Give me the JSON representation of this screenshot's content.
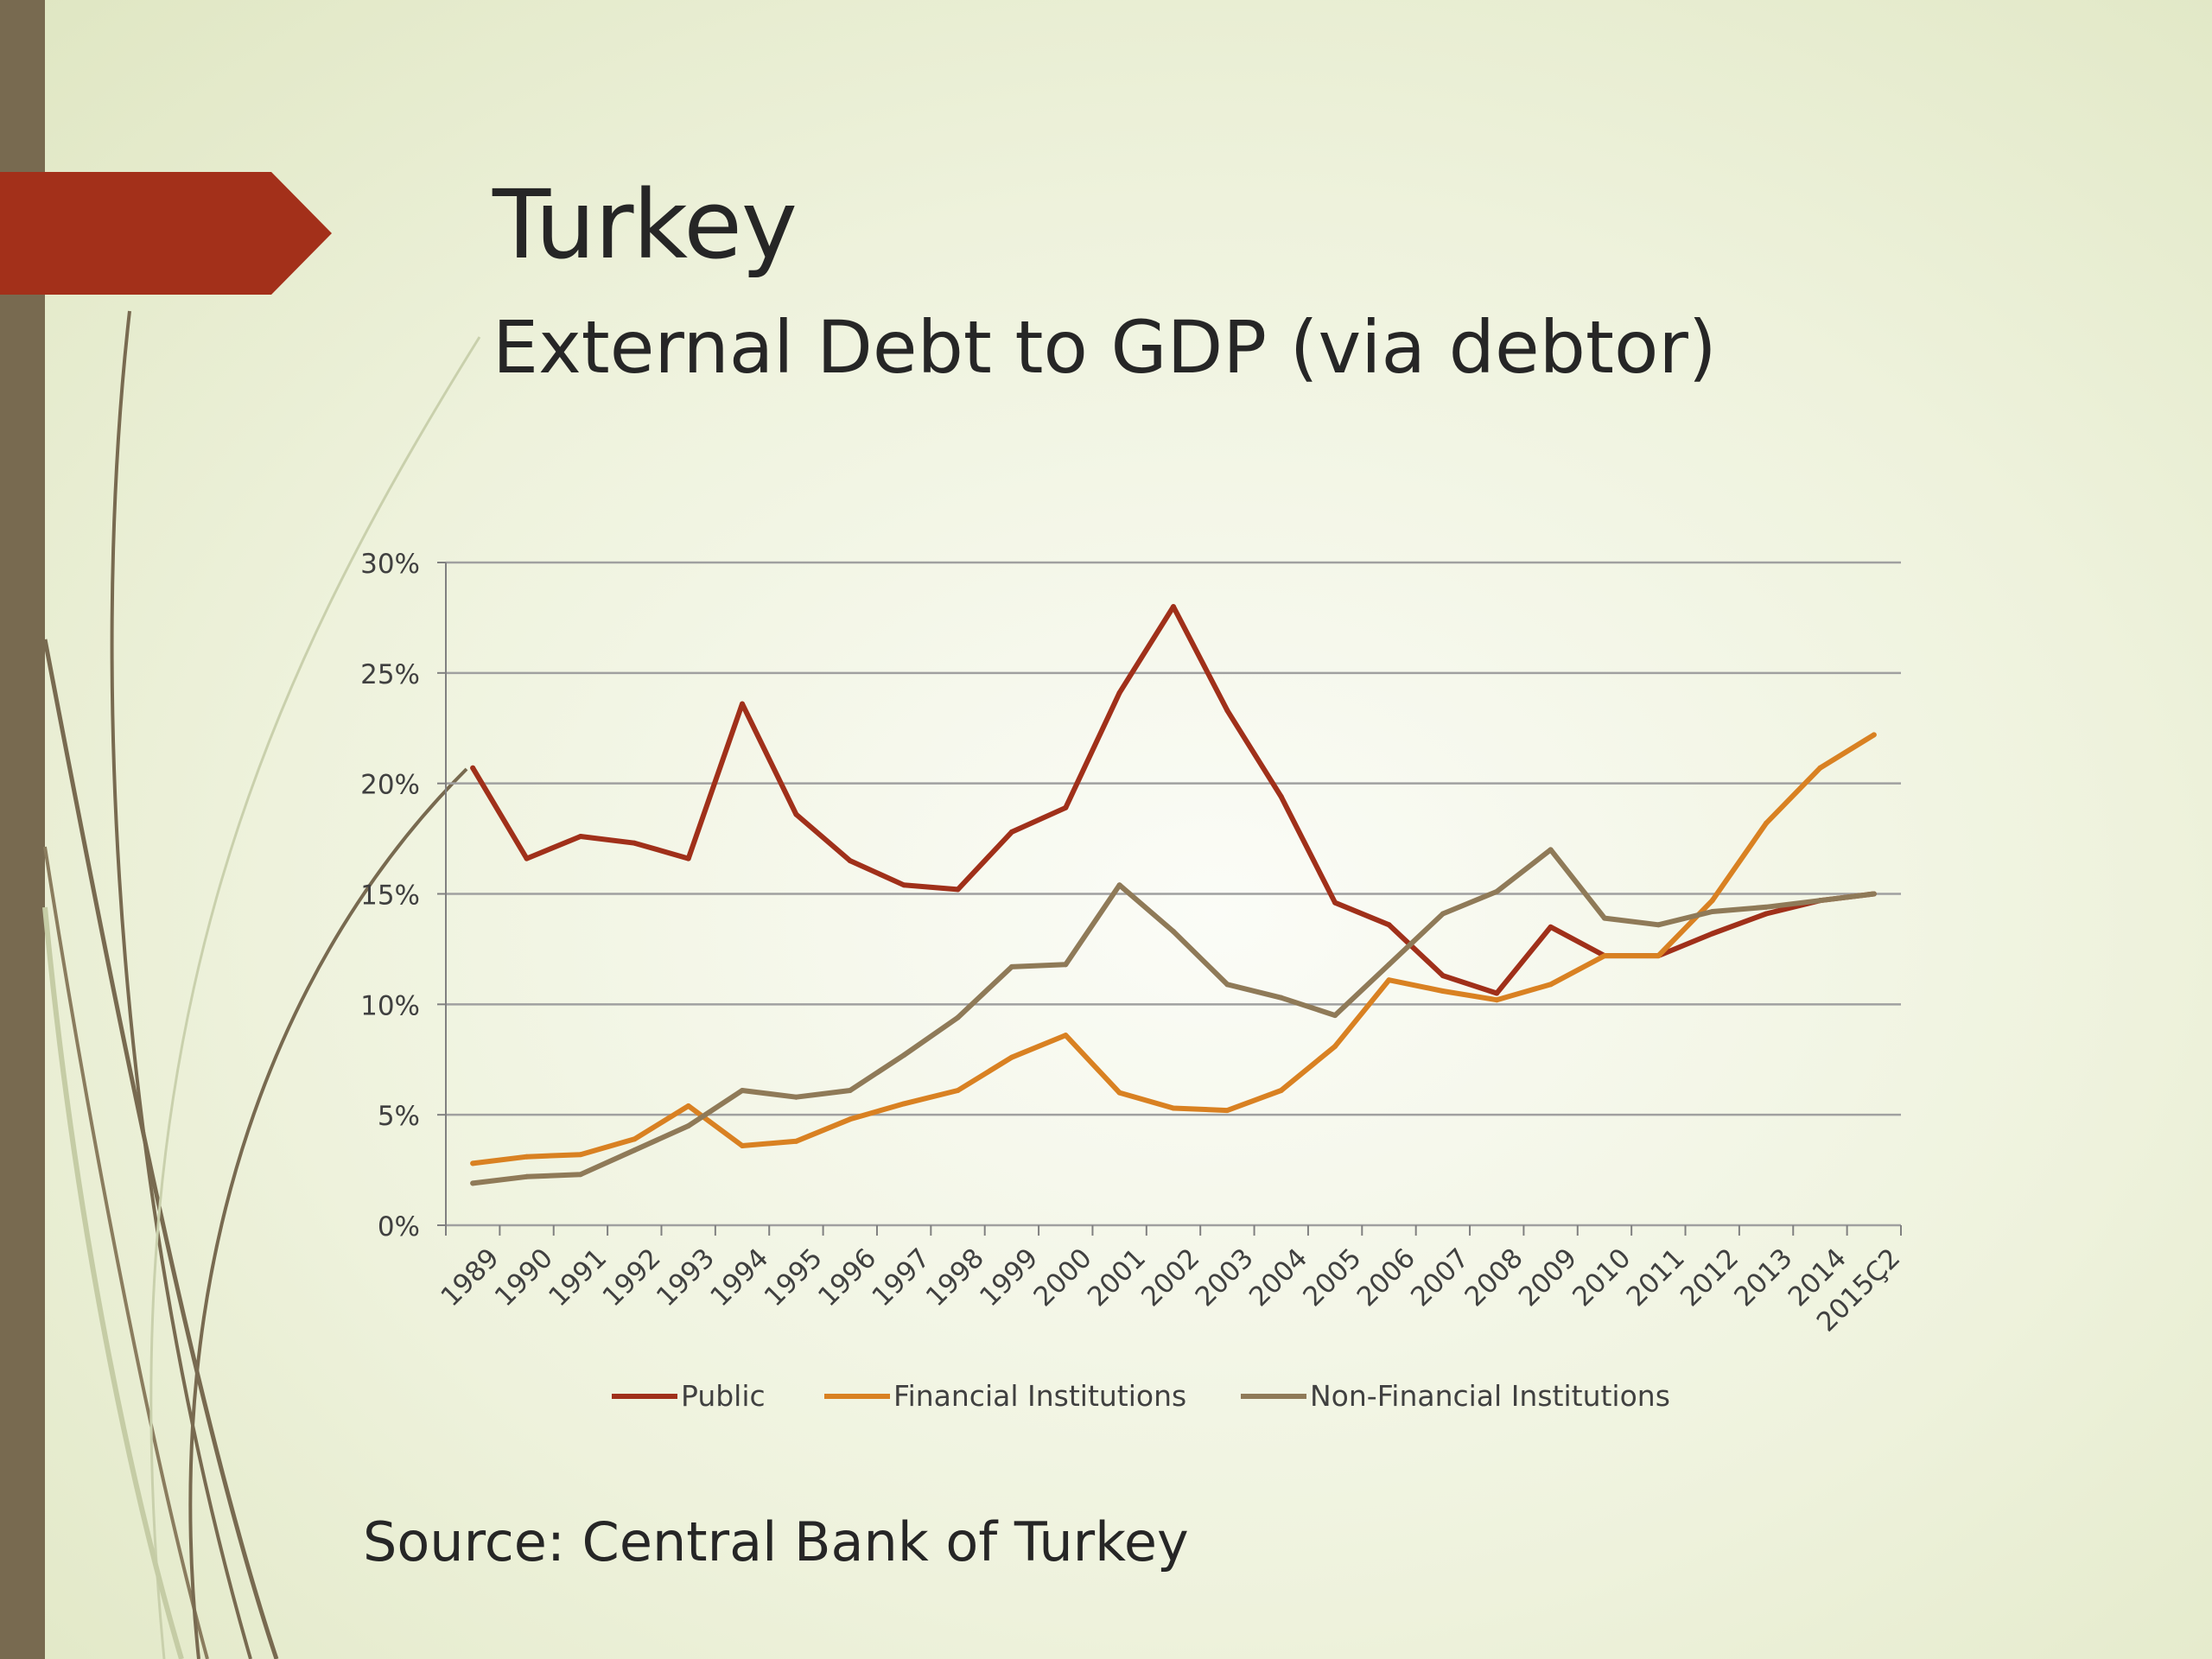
{
  "slide": {
    "title": "Turkey",
    "subtitle": "External Debt to GDP (via debtor)",
    "source": "Source: Central Bank of Turkey"
  },
  "colors": {
    "public": "#a0301a",
    "financial": "#d98122",
    "non_financial": "#8f7a58",
    "accent_arrow": "#a3301a",
    "left_bar": "#786a50",
    "grid": "#a0a0a0"
  },
  "chart_data": {
    "type": "line",
    "title": "",
    "xlabel": "",
    "ylabel": "",
    "ylim": [
      0,
      30
    ],
    "yticks": [
      "0%",
      "5%",
      "10%",
      "15%",
      "20%",
      "25%",
      "30%"
    ],
    "grid": true,
    "legend_position": "bottom",
    "categories": [
      "1989",
      "1990",
      "1991",
      "1992",
      "1993",
      "1994",
      "1995",
      "1996",
      "1997",
      "1998",
      "1999",
      "2000",
      "2001",
      "2002",
      "2003",
      "2004",
      "2005",
      "2006",
      "2007",
      "2008",
      "2009",
      "2010",
      "2011",
      "2012",
      "2013",
      "2014",
      "2015Ç2"
    ],
    "series": [
      {
        "name": "Public",
        "color": "#a0301a",
        "values": [
          20.7,
          16.6,
          17.6,
          17.3,
          16.6,
          23.6,
          18.6,
          16.5,
          15.4,
          15.2,
          17.8,
          18.9,
          24.1,
          28.0,
          23.3,
          19.4,
          14.6,
          13.6,
          11.3,
          10.5,
          13.5,
          12.2,
          12.2,
          13.2,
          14.1,
          14.7,
          15.0
        ]
      },
      {
        "name": "Financial Institutions",
        "color": "#d98122",
        "values": [
          2.8,
          3.1,
          3.2,
          3.9,
          5.4,
          3.6,
          3.8,
          4.8,
          5.5,
          6.1,
          7.6,
          8.6,
          6.0,
          5.3,
          5.2,
          6.1,
          8.1,
          11.1,
          10.6,
          10.2,
          10.9,
          12.2,
          12.2,
          14.7,
          18.2,
          20.7,
          22.2
        ]
      },
      {
        "name": "Non-Financial Institutions",
        "color": "#8f7a58",
        "values": [
          1.9,
          2.2,
          2.3,
          3.4,
          4.5,
          6.1,
          5.8,
          6.1,
          7.7,
          9.4,
          11.7,
          11.8,
          15.4,
          13.3,
          10.9,
          10.3,
          9.5,
          11.8,
          14.1,
          15.1,
          17.0,
          13.9,
          13.6,
          14.2,
          14.4,
          14.7,
          15.0
        ]
      }
    ]
  }
}
